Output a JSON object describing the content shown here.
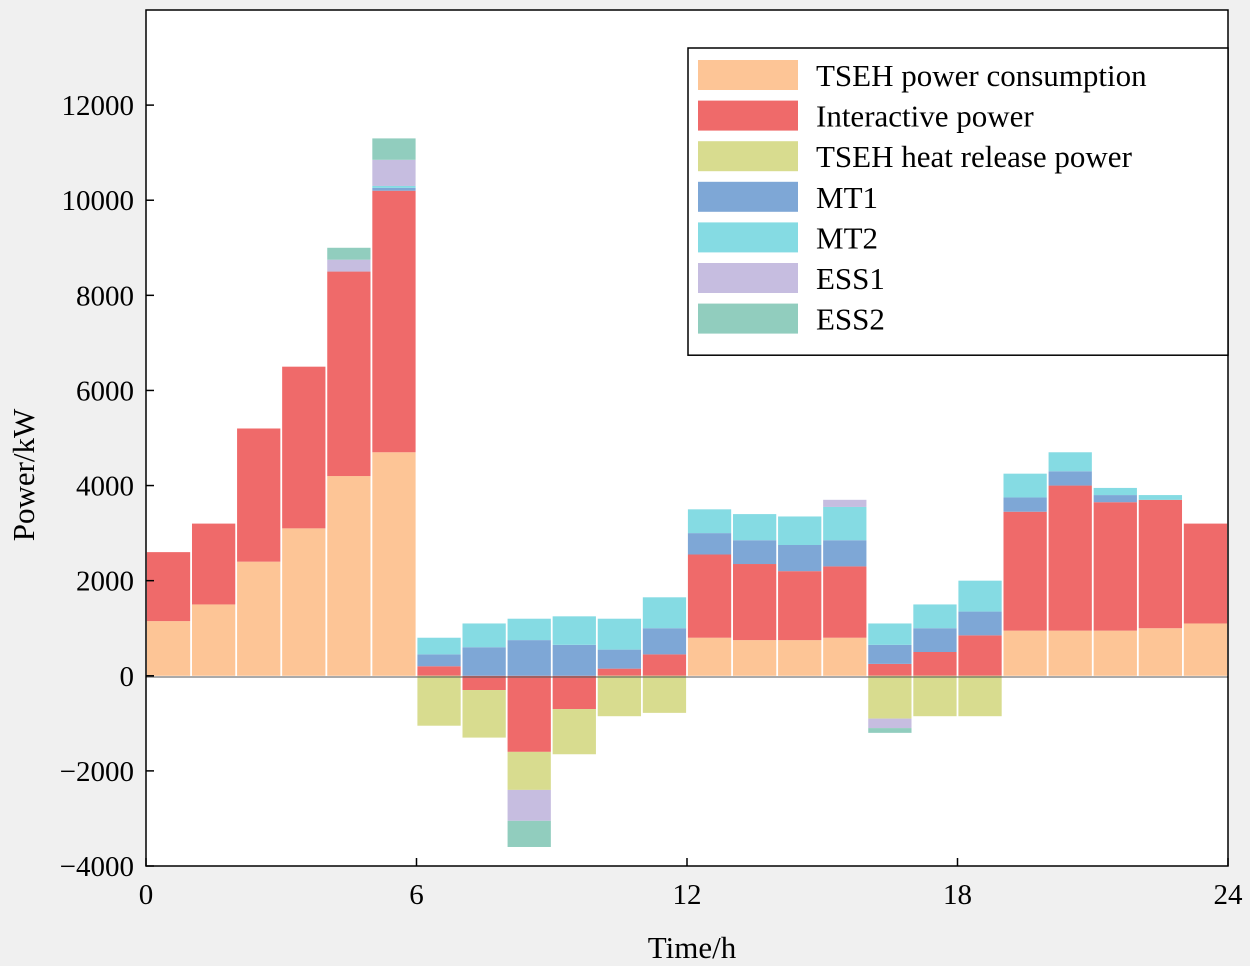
{
  "chart_data": {
    "type": "bar",
    "stacked": true,
    "title": "",
    "xlabel": "Time/h",
    "ylabel": "Power/kW",
    "xlim": [
      0,
      24
    ],
    "ylim": [
      -4000,
      14000
    ],
    "x_ticks": [
      "0",
      "6",
      "12",
      "18",
      "24"
    ],
    "y_ticks": [
      "−4000",
      "−2000",
      "0",
      "2000",
      "4000",
      "6000",
      "8000",
      "10000",
      "12000"
    ],
    "legend_position": "top-right",
    "grid": false,
    "categories": [
      "0-1",
      "1-2",
      "2-3",
      "3-4",
      "4-5",
      "5-6",
      "6-7",
      "7-8",
      "8-9",
      "9-10",
      "10-11",
      "11-12",
      "12-13",
      "13-14",
      "14-15",
      "15-16",
      "16-17",
      "17-18",
      "18-19",
      "19-20",
      "20-21",
      "21-22",
      "22-23",
      "23-24"
    ],
    "series": [
      {
        "name": "TSEH power consumption",
        "color": "#fdc596",
        "values": [
          1150,
          1500,
          2400,
          3100,
          4200,
          4700,
          0,
          0,
          0,
          0,
          0,
          0,
          800,
          750,
          750,
          800,
          0,
          0,
          0,
          950,
          950,
          950,
          1000,
          1100
        ]
      },
      {
        "name": "Interactive power",
        "color": "#ef6a6a",
        "values": [
          1450,
          1700,
          2800,
          3400,
          4300,
          5500,
          200,
          -300,
          -1600,
          -700,
          150,
          450,
          1750,
          1600,
          1450,
          1500,
          250,
          500,
          850,
          2500,
          3050,
          2700,
          2700,
          2100
        ]
      },
      {
        "name": "TSEH heat release power",
        "color": "#d8dc8f",
        "values": [
          0,
          0,
          0,
          0,
          0,
          0,
          -1050,
          -1000,
          -800,
          -950,
          -850,
          -780,
          0,
          0,
          0,
          0,
          -900,
          -850,
          -850,
          0,
          0,
          0,
          0,
          0
        ]
      },
      {
        "name": "MT1",
        "color": "#7ea7d6",
        "values": [
          0,
          0,
          0,
          0,
          0,
          60,
          250,
          600,
          750,
          650,
          400,
          550,
          450,
          500,
          550,
          550,
          400,
          500,
          500,
          300,
          300,
          150,
          0,
          0
        ]
      },
      {
        "name": "MT2",
        "color": "#85dbe3",
        "values": [
          0,
          0,
          0,
          0,
          0,
          40,
          350,
          500,
          450,
          600,
          650,
          650,
          500,
          550,
          600,
          700,
          450,
          500,
          650,
          500,
          400,
          150,
          100,
          0
        ]
      },
      {
        "name": "ESS1",
        "color": "#c6bde0",
        "values": [
          0,
          0,
          0,
          0,
          250,
          550,
          0,
          0,
          -650,
          0,
          0,
          0,
          0,
          0,
          0,
          150,
          -200,
          0,
          0,
          0,
          0,
          0,
          0,
          0
        ]
      },
      {
        "name": "ESS2",
        "color": "#91cdbe",
        "values": [
          0,
          0,
          0,
          0,
          250,
          450,
          0,
          0,
          -550,
          0,
          0,
          0,
          0,
          0,
          0,
          0,
          -100,
          0,
          0,
          0,
          0,
          0,
          0,
          0
        ]
      }
    ]
  }
}
